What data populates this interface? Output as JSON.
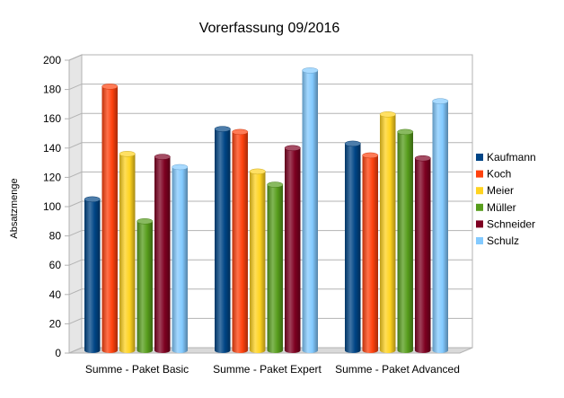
{
  "chart_data": {
    "type": "bar",
    "title": "Vorerfassung 09/2016",
    "xlabel": "",
    "ylabel": "Absatzmenge",
    "ylim": [
      0,
      200
    ],
    "yticks": [
      0,
      20,
      40,
      60,
      80,
      100,
      120,
      140,
      160,
      180,
      200
    ],
    "grid": true,
    "legend_position": "right",
    "categories": [
      "Summe - Paket Basic",
      "Summe - Paket Expert",
      "Summe - Paket Advanced"
    ],
    "series": [
      {
        "name": "Kaufmann",
        "color": "#004586",
        "values": [
          105,
          153,
          143
        ]
      },
      {
        "name": "Koch",
        "color": "#ff420e",
        "values": [
          182,
          151,
          135
        ]
      },
      {
        "name": "Meier",
        "color": "#ffd320",
        "values": [
          136,
          124,
          163
        ]
      },
      {
        "name": "Müller",
        "color": "#579d1c",
        "values": [
          90,
          115,
          151
        ]
      },
      {
        "name": "Schneider",
        "color": "#7e0021",
        "values": [
          134,
          140,
          133
        ]
      },
      {
        "name": "Schulz",
        "color": "#83caff",
        "values": [
          127,
          193,
          172
        ]
      }
    ]
  }
}
